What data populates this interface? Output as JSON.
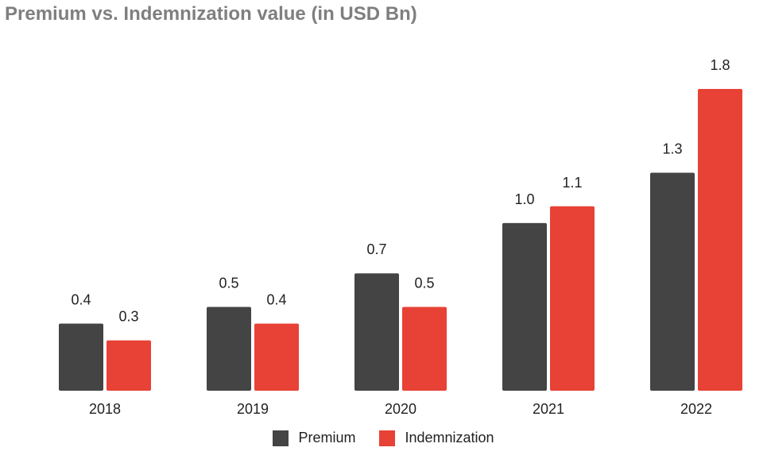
{
  "chart_data": {
    "type": "bar",
    "title": "Premium vs. Indemnization value (in USD Bn)",
    "categories": [
      "2018",
      "2019",
      "2020",
      "2021",
      "2022"
    ],
    "series": [
      {
        "name": "Premium",
        "values": [
          0.4,
          0.5,
          0.7,
          1.0,
          1.3
        ],
        "labels": [
          "0.4",
          "0.5",
          "0.7",
          "1.0",
          "1.3"
        ],
        "color": "#444444"
      },
      {
        "name": "Indemnization",
        "values": [
          0.3,
          0.4,
          0.5,
          1.1,
          1.8
        ],
        "labels": [
          "0.3",
          "0.4",
          "0.5",
          "1.1",
          "1.8"
        ],
        "color": "#e84136"
      }
    ],
    "ylim": [
      0,
      1.8
    ],
    "grid": false,
    "legend_position": "bottom-center"
  }
}
